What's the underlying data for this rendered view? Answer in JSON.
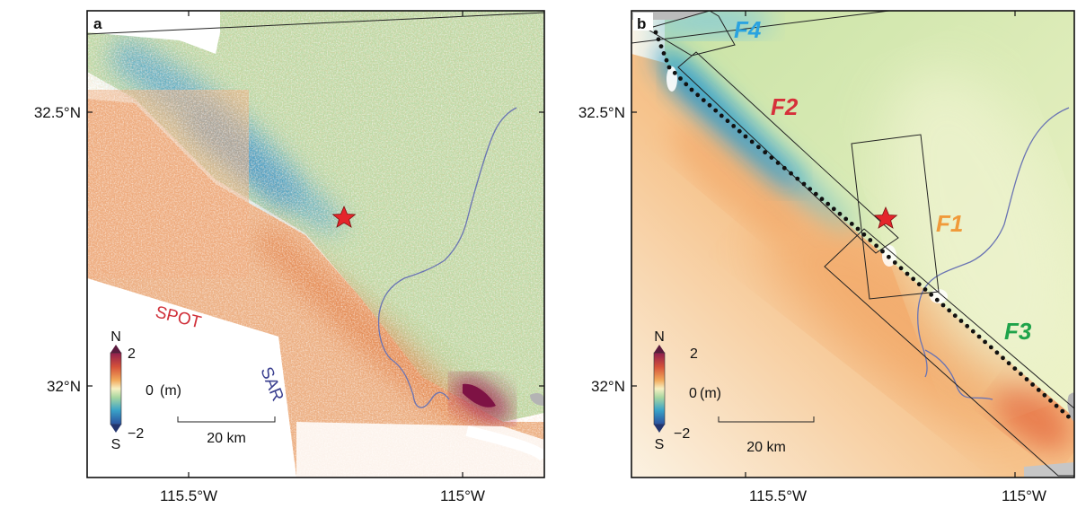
{
  "panels": [
    {
      "id": "a",
      "label": "a",
      "lat_labels": [
        "32.5°N",
        "32°N"
      ],
      "lon_labels": [
        "115.5°W",
        "115°W"
      ],
      "annotations": [
        {
          "text": "SPOT",
          "color": "#d0303a"
        },
        {
          "text": "SAR",
          "color": "#3a3f8f"
        }
      ],
      "colorbar": {
        "top": "N",
        "bottom": "S",
        "max": "2",
        "mid": "0",
        "min": "−2",
        "unit": "(m)"
      },
      "scalebar": "20 km"
    },
    {
      "id": "b",
      "label": "b",
      "lat_labels": [
        "32.5°N",
        "32°N"
      ],
      "lon_labels": [
        "115.5°W",
        "115°W"
      ],
      "faults": [
        {
          "text": "F4",
          "color": "#2aa3e0"
        },
        {
          "text": "F2",
          "color": "#d6303a"
        },
        {
          "text": "F1",
          "color": "#f09a3a"
        },
        {
          "text": "F3",
          "color": "#1fa34a"
        }
      ],
      "colorbar": {
        "top": "N",
        "bottom": "S",
        "max": "2",
        "mid": "0",
        "min": "−2",
        "unit": "(m)"
      },
      "scalebar": "20 km"
    }
  ],
  "colors": {
    "north": "#2b6fb6",
    "neutral": "#f4f1c4",
    "south": "#e0743a",
    "extreme": "#9c1f4f",
    "epicenter": "#e4252b",
    "river": "#6a74b3"
  },
  "legend_icons": [
    "epicenter-star-icon"
  ]
}
